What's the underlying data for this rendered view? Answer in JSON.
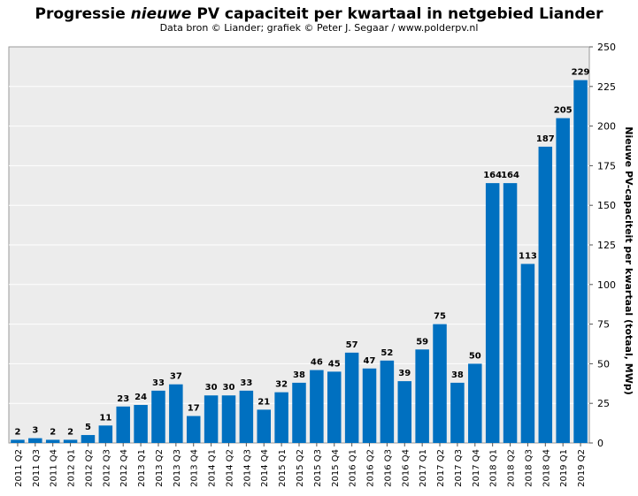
{
  "chart_data": {
    "type": "bar",
    "title": {
      "prefix": "Progressie ",
      "emphasis": "nieuwe",
      "suffix": " PV capaciteit  per kwartaal in netgebied Liander"
    },
    "subtitle": "Data bron © Liander; grafiek © Peter J. Segaar / www.polderpv.nl",
    "ylabel": "Nieuwe PV-capaciteit per kwartaal (totaal, MWp)",
    "xlabel": "",
    "ylim": [
      0,
      250
    ],
    "yticks": [
      "0",
      "25",
      "50",
      "75",
      "100",
      "125",
      "150",
      "175",
      "200",
      "225",
      "250"
    ],
    "y_axis_position": "right",
    "grid": "horizontal",
    "bar_color": "#0070c0",
    "plot_background": "#ececec",
    "categories": [
      "2011 Q2",
      "2011 Q3",
      "2011 Q4",
      "2012 Q1",
      "2012 Q2",
      "2012 Q3",
      "2012 Q4",
      "2013 Q1",
      "2013 Q2",
      "2013 Q3",
      "2013 Q4",
      "2014 Q1",
      "2014 Q2",
      "2014 Q3",
      "2014 Q4",
      "2015 Q1",
      "2015 Q2",
      "2015 Q3",
      "2015 Q4",
      "2016 Q1",
      "2016 Q2",
      "2016 Q3",
      "2016 Q4",
      "2017 Q1",
      "2017 Q2",
      "2017 Q3",
      "2017 Q4",
      "2018 Q1",
      "2018 Q2",
      "2018 Q3",
      "2018 Q4",
      "2019 Q1",
      "2019 Q2"
    ],
    "values": [
      2,
      3,
      2,
      2,
      5,
      11,
      23,
      24,
      33,
      37,
      17,
      30,
      30,
      33,
      21,
      32,
      38,
      46,
      45,
      57,
      47,
      52,
      39,
      59,
      75,
      38,
      50,
      164,
      164,
      113,
      187,
      205,
      229
    ],
    "data_labels": [
      "2",
      "3",
      "2",
      "2",
      "5",
      "11",
      "23",
      "24",
      "33",
      "37",
      "17",
      "30",
      "30",
      "33",
      "21",
      "32",
      "38",
      "46",
      "45",
      "57",
      "47",
      "52",
      "39",
      "59",
      "75",
      "38",
      "50",
      "164",
      "164",
      "113",
      "187",
      "205",
      "229"
    ]
  }
}
